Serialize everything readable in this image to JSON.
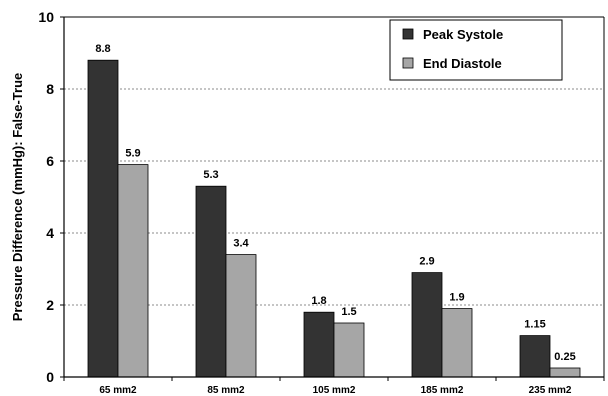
{
  "chart_data": {
    "type": "bar",
    "title": "",
    "xlabel": "",
    "ylabel": "Pressure Difference (mmHg): False-True",
    "ylim": [
      0,
      10
    ],
    "yticks": [
      0,
      2,
      4,
      6,
      8,
      10
    ],
    "grid": "horizontal-dotted",
    "legend_position": "top-right",
    "categories": [
      "65 mm2",
      "85 mm2",
      "105 mm2",
      "185 mm2",
      "235 mm2"
    ],
    "series": [
      {
        "name": "Peak Systole",
        "color": "#333333",
        "values": [
          8.8,
          5.3,
          1.8,
          2.9,
          1.15
        ],
        "labels": [
          "8.8",
          "5.3",
          "1.8",
          "2.9",
          "1.15"
        ]
      },
      {
        "name": "End Diastole",
        "color": "#a6a6a6",
        "values": [
          5.9,
          3.4,
          1.5,
          1.9,
          0.25
        ],
        "labels": [
          "5.9",
          "3.4",
          "1.5",
          "1.9",
          "0.25"
        ]
      }
    ]
  }
}
